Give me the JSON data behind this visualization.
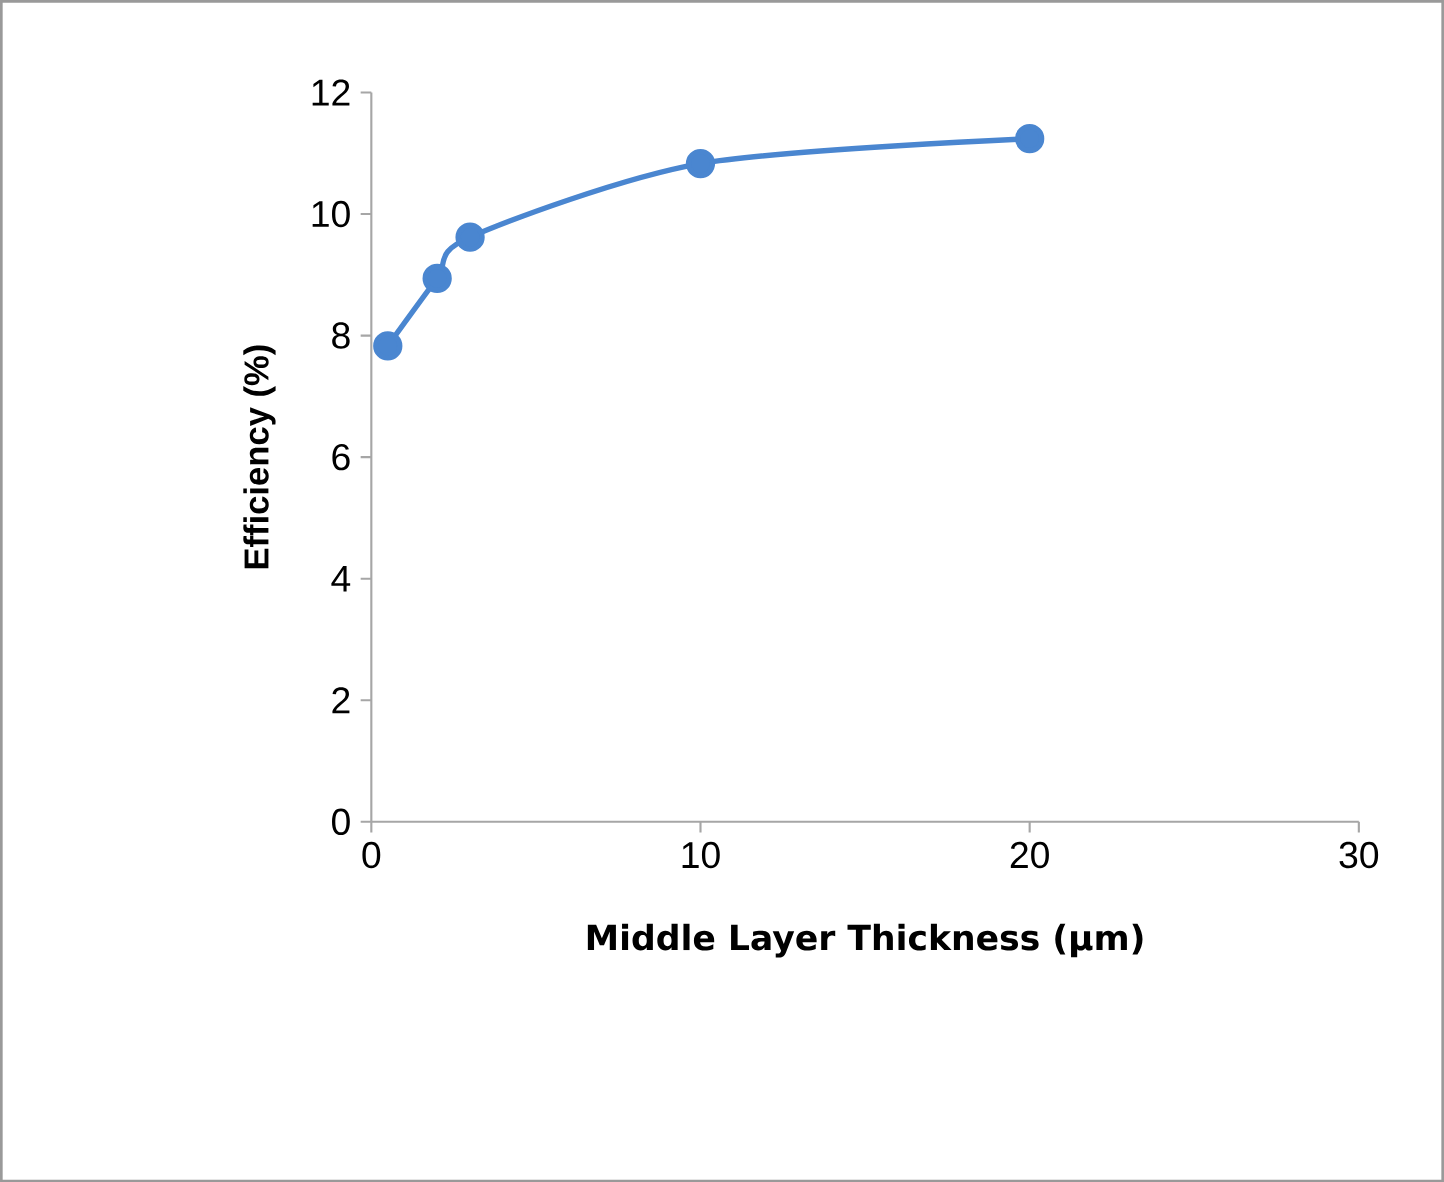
{
  "chart_data": {
    "type": "line",
    "xlabel": "Middle Layer Thickness (μm)",
    "ylabel": "Efficiency (%)",
    "x": [
      0.5,
      2,
      3,
      10,
      20
    ],
    "series": [
      {
        "color": "#4a86d0",
        "values": [
          7.83,
          8.94,
          9.62,
          10.83,
          11.24
        ]
      }
    ],
    "xlim": [
      0,
      30
    ],
    "ylim": [
      0,
      12
    ],
    "xticks": [
      0,
      10,
      20,
      30
    ],
    "yticks": [
      0,
      2,
      4,
      6,
      8,
      10,
      12
    ],
    "marker": "circle",
    "line_style": "solid",
    "grid": false
  }
}
